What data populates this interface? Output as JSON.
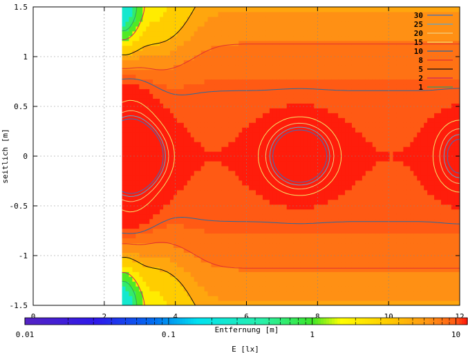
{
  "chart_data": {
    "type": "heatmap",
    "xlabel": "Entfernung [m]",
    "ylabel": "seitlich [m]",
    "xlim": [
      0,
      12
    ],
    "ylim": [
      -1.5,
      1.5
    ],
    "x_ticks": [
      "0",
      "2",
      "4",
      "6",
      "8",
      "10",
      "12"
    ],
    "y_ticks": [
      "1.5",
      "1",
      "0.5",
      "0",
      "-0.5",
      "-1",
      "-1.5"
    ],
    "grid": true,
    "data_x_range": [
      2.5,
      12
    ],
    "contour_legend": {
      "placement": "top-right",
      "entries": [
        {
          "label": "30",
          "color": "#3a6fbf"
        },
        {
          "label": "25",
          "color": "#5aa7d0"
        },
        {
          "label": "20",
          "color": "#f0d080"
        },
        {
          "label": "15",
          "color": "#f4e86a"
        },
        {
          "label": "10",
          "color": "#2a6aa0"
        },
        {
          "label": "8",
          "color": "#e03030"
        },
        {
          "label": "5",
          "color": "#101010"
        },
        {
          "label": "2",
          "color": "#d02060"
        },
        {
          "label": "1",
          "color": "#30a060"
        }
      ]
    },
    "colorbar": {
      "label": "E [lx]",
      "scale": "log",
      "range": [
        0.01,
        12
      ],
      "tick_labels": [
        "0.01",
        "0.1",
        "1",
        "10"
      ],
      "tick_values": [
        0.01,
        0.1,
        1,
        10
      ]
    },
    "illuminance_description": "Illuminance field: highest (>15 lx) along the centre line y=0 near x≈2.6, x≈7.5 and x≈12; lowest (<1 lx) in the corners at x≈2.6, y=±1.5."
  }
}
